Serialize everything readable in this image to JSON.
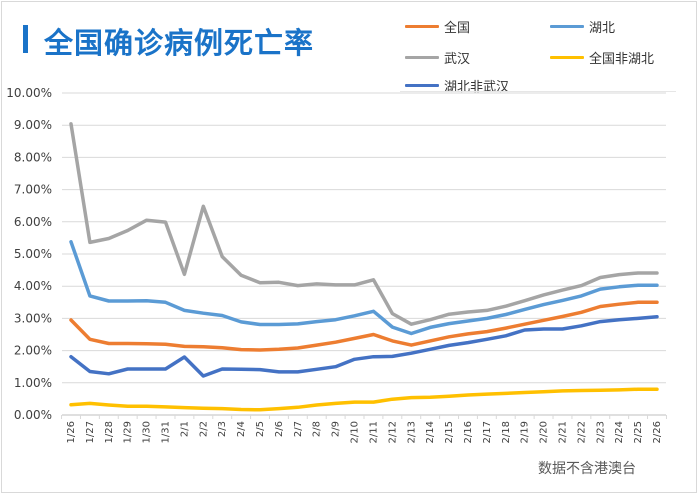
{
  "title": "全国确诊病例死亡率",
  "source_note": "数据不含港澳台",
  "chart_data": {
    "type": "line",
    "title": "全国确诊病例死亡率",
    "xlabel": "",
    "ylabel": "",
    "ylim": [
      0,
      10
    ],
    "y_unit": "%",
    "yticks": [
      "0.00%",
      "1.00%",
      "2.00%",
      "3.00%",
      "4.00%",
      "5.00%",
      "6.00%",
      "7.00%",
      "8.00%",
      "9.00%",
      "10.00%"
    ],
    "grid": true,
    "legend_position": "top-right",
    "categories": [
      "1/26",
      "1/27",
      "1/28",
      "1/29",
      "1/30",
      "1/31",
      "2/1",
      "2/2",
      "2/3",
      "2/4",
      "2/5",
      "2/6",
      "2/7",
      "2/8",
      "2/9",
      "2/10",
      "2/11",
      "2/12",
      "2/13",
      "2/14",
      "2/15",
      "2/16",
      "2/17",
      "2/18",
      "2/19",
      "2/20",
      "2/21",
      "2/22",
      "2/23",
      "2/24",
      "2/25",
      "2/26"
    ],
    "series": [
      {
        "name": "全国",
        "color": "#ed7d31",
        "values": [
          2.95,
          2.35,
          2.22,
          2.22,
          2.21,
          2.2,
          2.13,
          2.12,
          2.09,
          2.03,
          2.02,
          2.04,
          2.08,
          2.17,
          2.26,
          2.38,
          2.5,
          2.3,
          2.17,
          2.3,
          2.43,
          2.52,
          2.59,
          2.7,
          2.82,
          2.94,
          3.06,
          3.19,
          3.37,
          3.44,
          3.5,
          3.5
        ]
      },
      {
        "name": "湖北",
        "color": "#5b9bd5",
        "values": [
          5.38,
          3.7,
          3.54,
          3.54,
          3.55,
          3.5,
          3.25,
          3.16,
          3.09,
          2.89,
          2.81,
          2.81,
          2.83,
          2.9,
          2.96,
          3.08,
          3.22,
          2.73,
          2.53,
          2.72,
          2.84,
          2.92,
          3.0,
          3.12,
          3.28,
          3.43,
          3.56,
          3.7,
          3.91,
          3.98,
          4.03,
          4.03
        ]
      },
      {
        "name": "武汉",
        "color": "#a5a5a5",
        "values": [
          9.04,
          5.36,
          5.48,
          5.73,
          6.05,
          5.99,
          4.37,
          6.48,
          4.92,
          4.34,
          4.11,
          4.12,
          4.02,
          4.07,
          4.04,
          4.04,
          4.2,
          3.15,
          2.82,
          2.96,
          3.13,
          3.2,
          3.25,
          3.38,
          3.55,
          3.73,
          3.88,
          4.02,
          4.27,
          4.36,
          4.41,
          4.41
        ]
      },
      {
        "name": "全国非湖北",
        "color": "#ffc000",
        "values": [
          0.32,
          0.36,
          0.31,
          0.27,
          0.27,
          0.25,
          0.23,
          0.21,
          0.2,
          0.17,
          0.16,
          0.2,
          0.24,
          0.31,
          0.36,
          0.4,
          0.4,
          0.49,
          0.54,
          0.55,
          0.58,
          0.62,
          0.65,
          0.67,
          0.7,
          0.72,
          0.75,
          0.76,
          0.77,
          0.78,
          0.8,
          0.8
        ]
      },
      {
        "name": "湖北非武汉",
        "color": "#4472c4",
        "values": [
          1.81,
          1.35,
          1.28,
          1.43,
          1.43,
          1.43,
          1.8,
          1.21,
          1.43,
          1.42,
          1.41,
          1.34,
          1.34,
          1.42,
          1.5,
          1.73,
          1.81,
          1.82,
          1.92,
          2.04,
          2.16,
          2.25,
          2.35,
          2.46,
          2.64,
          2.67,
          2.67,
          2.77,
          2.9,
          2.96,
          3.0,
          3.05
        ]
      }
    ]
  },
  "legend": [
    {
      "label": "全国",
      "color": "#ed7d31"
    },
    {
      "label": "湖北",
      "color": "#5b9bd5"
    },
    {
      "label": "武汉",
      "color": "#a5a5a5"
    },
    {
      "label": "全国非湖北",
      "color": "#ffc000"
    },
    {
      "label": "湖北非武汉",
      "color": "#4472c4"
    }
  ]
}
